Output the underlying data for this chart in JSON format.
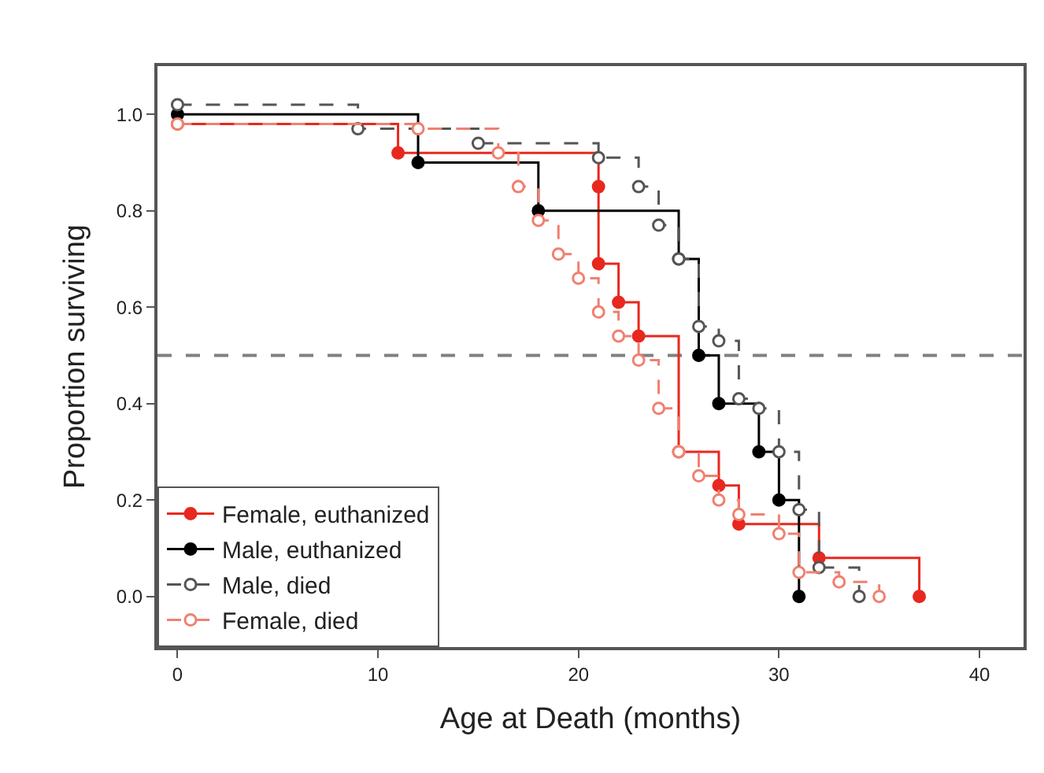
{
  "chart_data": {
    "type": "step",
    "xlabel": "Age at Death (months)",
    "ylabel": "Proportion surviving",
    "xlim": [
      -1,
      42.2
    ],
    "ylim": [
      -0.105,
      1.1
    ],
    "xticks": [
      0,
      10,
      20,
      30,
      40
    ],
    "yticks": [
      {
        "value": 0,
        "label": "0.0"
      },
      {
        "value": 0.2,
        "label": "0.2"
      },
      {
        "value": 0.4,
        "label": "0.4"
      },
      {
        "value": 0.6,
        "label": "0.6"
      },
      {
        "value": 0.8,
        "label": "0.8"
      },
      {
        "value": 1,
        "label": "1.0"
      }
    ],
    "grid": false,
    "legend": "bottom left",
    "marker": "circle",
    "ref_lines": [
      {
        "axis": "y",
        "value": 0.5,
        "color": "#808080",
        "line_style": "dashed"
      }
    ],
    "series": [
      {
        "name": "Female, euthanized",
        "color": "#e8281e",
        "line_style": "solid",
        "x": [
          0,
          11,
          21,
          21,
          22,
          23,
          25,
          27,
          28,
          32,
          37
        ],
        "values": [
          0.98,
          0.92,
          0.85,
          0.69,
          0.61,
          0.54,
          0.3,
          0.23,
          0.15,
          0.08,
          0.0
        ]
      },
      {
        "name": "Male, euthanized",
        "color": "#000000",
        "line_style": "solid",
        "x": [
          0,
          12,
          18,
          25,
          26,
          27,
          29,
          30,
          31
        ],
        "values": [
          1.0,
          0.9,
          0.8,
          0.7,
          0.5,
          0.4,
          0.3,
          0.2,
          0.0
        ]
      },
      {
        "name": "Male, died",
        "color": "#555555",
        "line_style": "dashed",
        "x": [
          0,
          9,
          15,
          21,
          23,
          24,
          25,
          26,
          27,
          28,
          29,
          30,
          31,
          32,
          34
        ],
        "values": [
          1.02,
          0.97,
          0.94,
          0.91,
          0.85,
          0.77,
          0.7,
          0.56,
          0.53,
          0.41,
          0.39,
          0.3,
          0.18,
          0.06,
          0.0
        ]
      },
      {
        "name": "Female, died",
        "color": "#f08070",
        "line_style": "dashed",
        "x": [
          0,
          12,
          16,
          17,
          18,
          19,
          20,
          21,
          22,
          23,
          24,
          25,
          26,
          27,
          28,
          30,
          31,
          33,
          35
        ],
        "values": [
          0.98,
          0.97,
          0.92,
          0.85,
          0.78,
          0.71,
          0.66,
          0.59,
          0.54,
          0.49,
          0.39,
          0.3,
          0.25,
          0.2,
          0.17,
          0.13,
          0.05,
          0.03,
          0.0
        ]
      }
    ]
  }
}
